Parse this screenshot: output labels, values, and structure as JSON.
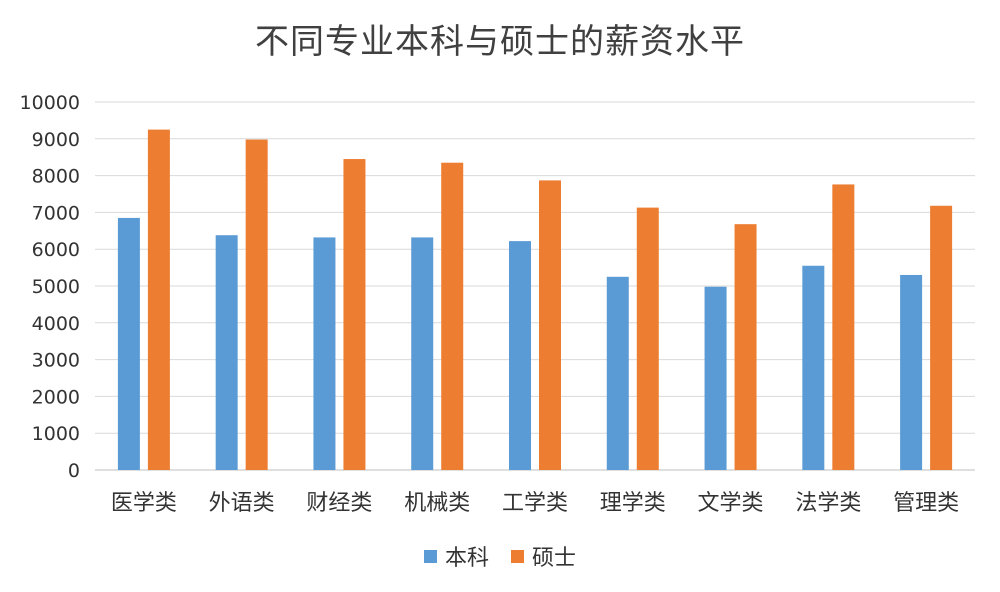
{
  "chart_data": {
    "type": "bar",
    "title": "不同专业本科与硕士的薪资水平",
    "categories": [
      "医学类",
      "外语类",
      "财经类",
      "机械类",
      "工学类",
      "理学类",
      "文学类",
      "法学类",
      "管理类"
    ],
    "series": [
      {
        "name": "本科",
        "color": "#5B9BD5",
        "values": [
          6850,
          6380,
          6320,
          6320,
          6220,
          5250,
          4980,
          5550,
          5300
        ]
      },
      {
        "name": "硕士",
        "color": "#ED7D31",
        "values": [
          9250,
          8980,
          8450,
          8350,
          7870,
          7130,
          6680,
          7760,
          7180
        ]
      }
    ],
    "yticks": [
      "0",
      "1000",
      "2000",
      "3000",
      "4000",
      "5000",
      "6000",
      "7000",
      "8000",
      "9000",
      "10000"
    ],
    "ylim": [
      0,
      10000
    ],
    "grid": true,
    "legend_position": "bottom"
  }
}
